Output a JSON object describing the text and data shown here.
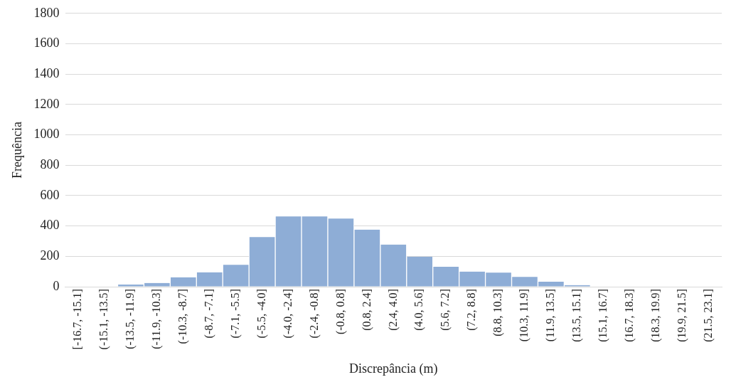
{
  "chart_data": {
    "type": "bar",
    "xlabel": "Discrepância (m)",
    "ylabel": "Frequência",
    "categories": [
      "[-16.7, -15.1]",
      "(-15.1, -13.5]",
      "(-13.5, -11.9]",
      "(-11.9, -10.3]",
      "(-10.3, -8.7]",
      "(-8.7, -7.1]",
      "(-7.1, -5.5]",
      "(-5.5, -4.0]",
      "(-4.0, -2.4]",
      "(-2.4, -0.8]",
      "(-0.8, 0.8]",
      "(0.8, 2.4]",
      "(2.4, 4.0]",
      "(4.0, 5.6]",
      "(5.6, 7.2]",
      "(7.2, 8.8]",
      "(8.8, 10.3]",
      "(10.3, 11.9]",
      "(11.9, 13.5]",
      "(13.5, 15.1]",
      "(15.1, 16.7]",
      "(16.7, 18.3]",
      "(18.3, 19.9]",
      "(19.9, 21.5]",
      "(21.5, 23.1]"
    ],
    "values": [
      0,
      0,
      15,
      25,
      62,
      95,
      145,
      327,
      463,
      463,
      449,
      376,
      278,
      198,
      131,
      100,
      93,
      65,
      33,
      11,
      0,
      0,
      0,
      0,
      0
    ],
    "color": "#8eadd6",
    "ylim": [
      0,
      1800
    ],
    "yticks": [
      0,
      200,
      400,
      600,
      800,
      1000,
      1200,
      1400,
      1600,
      1800
    ],
    "grid": "y"
  }
}
